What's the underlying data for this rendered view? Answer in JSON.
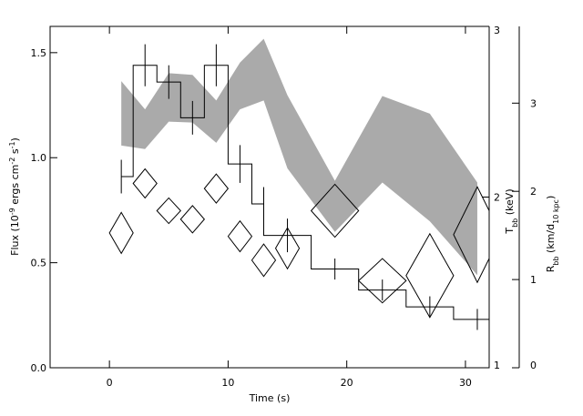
{
  "chart_data": {
    "type": "step",
    "xlabel": [
      "Time (s)"
    ],
    "ylabel": [
      "Flux (10",
      "-9",
      " ergs cm",
      "-2",
      " s",
      "-1",
      ")"
    ],
    "y2label": [
      "T",
      "bb",
      " (keV)"
    ],
    "y3label": [
      "R",
      "bb",
      " (km/d",
      "10 kpc",
      ")"
    ],
    "xlim": [
      -5,
      32
    ],
    "xticks": [
      0,
      10,
      20,
      30
    ],
    "ylim": [
      0,
      1.625
    ],
    "yticks": [
      {
        "value": 0,
        "label": "0.0"
      },
      0.5,
      {
        "value": 1,
        "label": "1.0"
      },
      1.5
    ],
    "y2lim": [
      1,
      3
    ],
    "y2ticks": [
      1,
      2,
      3
    ],
    "y3lim": [
      0,
      3.87
    ],
    "y3ticks": [
      0,
      1,
      2,
      3
    ],
    "series": [
      {
        "type": "band",
        "axis": "y3",
        "color": "#aaaaaa",
        "x": [
          1,
          3,
          5,
          7,
          9,
          11,
          13,
          15,
          19,
          23,
          27,
          31
        ],
        "upper": [
          3.25,
          2.93,
          3.34,
          3.32,
          3.03,
          3.46,
          3.73,
          3.09,
          2.12,
          3.08,
          2.88,
          2.1
        ],
        "lower": [
          2.52,
          2.48,
          2.79,
          2.78,
          2.55,
          2.93,
          3.03,
          2.26,
          1.54,
          2.1,
          1.66,
          1.05
        ]
      },
      {
        "type": "step",
        "color": "#000000",
        "bins": [
          1,
          2,
          4,
          6,
          8,
          10,
          12,
          13,
          17,
          21,
          25,
          29,
          32
        ],
        "values": [
          0.91,
          1.44,
          1.36,
          1.19,
          1.44,
          0.97,
          0.78,
          0.63,
          0.47,
          0.37,
          0.29,
          0.23
        ]
      },
      {
        "type": "errorbar",
        "color": "#000000",
        "x": [
          1,
          3,
          5,
          7,
          9,
          11,
          13,
          15,
          19,
          23,
          27,
          31
        ],
        "values": [
          0.91,
          1.44,
          1.36,
          1.19,
          1.44,
          0.97,
          0.78,
          0.63,
          0.47,
          0.37,
          0.29,
          0.23
        ],
        "errors": [
          0.08,
          0.1,
          0.08,
          0.08,
          0.1,
          0.09,
          0.08,
          0.08,
          0.05,
          0.05,
          0.05,
          0.05
        ]
      },
      {
        "type": "diamond",
        "axis": "y2",
        "color": "#000000",
        "x": [
          1,
          3,
          5,
          7,
          9,
          11,
          13,
          15,
          19,
          23,
          27,
          31
        ],
        "xerr": [
          1,
          1,
          1,
          1,
          1,
          1,
          1,
          1,
          2,
          2,
          2,
          2
        ],
        "values": [
          1.79,
          2.08,
          1.92,
          1.87,
          2.05,
          1.77,
          1.63,
          1.7,
          1.92,
          1.51,
          1.54,
          1.78
        ],
        "errors": [
          0.12,
          0.085,
          0.075,
          0.08,
          0.085,
          0.09,
          0.095,
          0.12,
          0.155,
          0.13,
          0.245,
          0.28
        ]
      }
    ]
  }
}
